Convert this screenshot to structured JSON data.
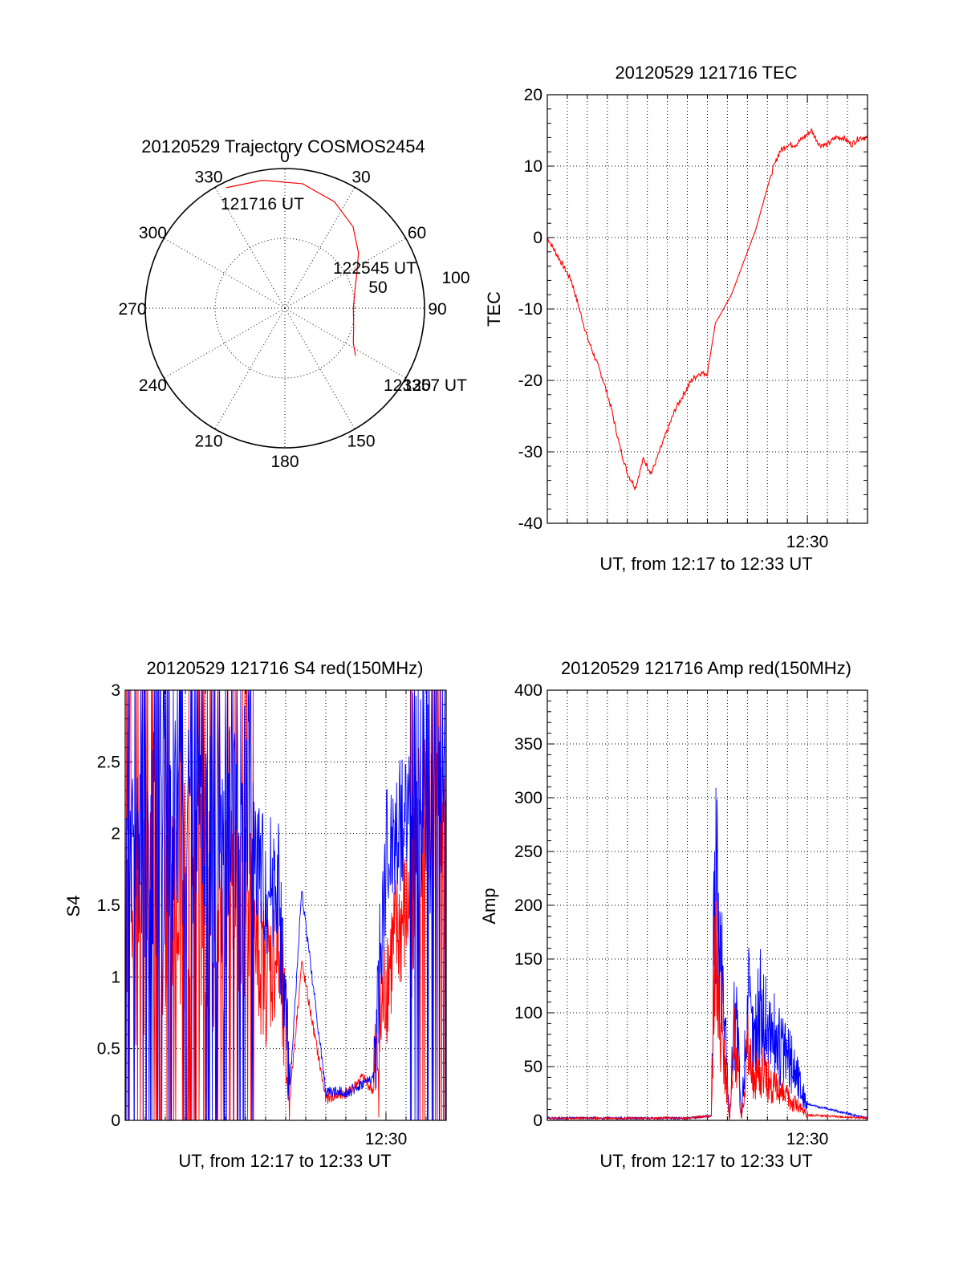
{
  "colors": {
    "red": "#ff0000",
    "blue": "#0000ff",
    "axes": "#000000"
  },
  "polar": {
    "title": "20120529 Trajectory COSMOS2454",
    "angle_labels": [
      "0",
      "30",
      "60",
      "90",
      "120",
      "150",
      "180",
      "210",
      "240",
      "270",
      "300",
      "330"
    ],
    "radius_labels": [
      "50",
      "100"
    ],
    "start_label": "121716 UT",
    "mid_label": "122545 UT",
    "end_label": "123357 UT"
  },
  "charts": {
    "tec": {
      "title": "20120529 121716 TEC",
      "ylabel": "TEC",
      "xlabel": "UT, from 12:17 to 12:33 UT",
      "xtick_label": "12:30",
      "yticks": [
        "-40",
        "-30",
        "-20",
        "-10",
        "0",
        "10",
        "20"
      ]
    },
    "s4": {
      "title": "20120529 121716 S4 red(150MHz)",
      "ylabel": "S4",
      "xlabel": "UT, from 12:17 to 12:33 UT",
      "xtick_label": "12:30",
      "yticks": [
        "0",
        "0.5",
        "1",
        "1.5",
        "2",
        "2.5",
        "3"
      ]
    },
    "amp": {
      "title": "20120529 121716 Amp red(150MHz)",
      "ylabel": "Amp",
      "xlabel": "UT, from 12:17 to 12:33 UT",
      "xtick_label": "12:30",
      "yticks": [
        "0",
        "50",
        "100",
        "150",
        "200",
        "250",
        "300",
        "350",
        "400"
      ]
    }
  },
  "chart_data": [
    {
      "type": "scatter",
      "title": "20120529 Trajectory COSMOS2454",
      "projection": "polar",
      "r_range": [
        0,
        100
      ],
      "angle_ticks": [
        0,
        30,
        60,
        90,
        120,
        150,
        180,
        210,
        240,
        270,
        300,
        330
      ],
      "r_ticks": [
        50,
        100
      ],
      "series": [
        {
          "color": "#ff0000",
          "points_az_el": [
            [
              -26,
              96
            ],
            [
              -10,
              93
            ],
            [
              8,
              90
            ],
            [
              25,
              84
            ],
            [
              40,
              76
            ],
            [
              53,
              66
            ],
            [
              63,
              58
            ],
            [
              75,
              52
            ],
            [
              90,
              49
            ],
            [
              105,
              51
            ],
            [
              117,
              55
            ],
            [
              124,
              61
            ]
          ]
        }
      ],
      "annotations": [
        "121716 UT",
        "122545 UT",
        "123357 UT"
      ]
    },
    {
      "type": "line",
      "title": "20120529 121716 TEC",
      "xlabel": "UT, from 12:17 to 12:33 UT",
      "ylabel": "TEC",
      "xlim": [
        12.2833,
        12.55
      ],
      "ylim": [
        -40,
        20
      ],
      "series": [
        {
          "color": "#ff0000",
          "x_hours": [
            12.2833,
            12.29,
            12.2967,
            12.3033,
            12.31,
            12.3167,
            12.3233,
            12.33,
            12.3367,
            12.3433,
            12.35,
            12.3567,
            12.3633,
            12.37,
            12.3767,
            12.3833,
            12.39,
            12.3967,
            12.4033,
            12.41,
            12.4167,
            12.4233,
            12.43,
            12.4367,
            12.4433,
            12.45,
            12.4567,
            12.4633,
            12.47,
            12.4767,
            12.4833,
            12.49,
            12.4967,
            12.5033,
            12.51,
            12.5167,
            12.5233,
            12.53,
            12.5367,
            12.5433,
            12.55
          ],
          "y": [
            0,
            -2,
            -4,
            -6,
            -10,
            -14,
            -17,
            -20,
            -24,
            -29,
            -33,
            -35,
            -31,
            -33,
            -30,
            -27,
            -24,
            -22,
            -20,
            -19,
            -19,
            -12,
            -10,
            -8,
            -5,
            -2,
            1,
            5,
            9,
            12,
            13,
            13,
            14,
            15,
            13,
            13,
            14,
            14,
            13,
            14,
            14
          ]
        }
      ]
    },
    {
      "type": "line",
      "title": "20120529 121716 S4 red(150MHz)",
      "xlabel": "UT, from 12:17 to 12:33 UT",
      "ylabel": "S4",
      "xlim": [
        12.2833,
        12.55
      ],
      "ylim": [
        0,
        3
      ],
      "series": [
        {
          "color": "#ff0000",
          "x_hours": [
            12.2833,
            12.3,
            12.32,
            12.34,
            12.36,
            12.38,
            12.4,
            12.41,
            12.42,
            12.43,
            12.45,
            12.47,
            12.48,
            12.49,
            12.5,
            12.51,
            12.52,
            12.53,
            12.54,
            12.55
          ],
          "y": [
            1.2,
            1.4,
            1.5,
            1.6,
            1.3,
            1.5,
            1.0,
            1.2,
            0.15,
            1.1,
            0.15,
            0.2,
            0.3,
            0.2,
            1.0,
            1.3,
            1.5,
            2.0,
            2.5,
            1.5
          ]
        },
        {
          "color": "#0000ff",
          "x_hours": [
            12.2833,
            12.3,
            12.32,
            12.34,
            12.36,
            12.38,
            12.4,
            12.41,
            12.42,
            12.43,
            12.45,
            12.47,
            12.48,
            12.49,
            12.5,
            12.51,
            12.52,
            12.53,
            12.54,
            12.55
          ],
          "y": [
            1.8,
            1.9,
            2.0,
            2.1,
            1.8,
            2.2,
            1.6,
            1.7,
            0.2,
            1.6,
            0.2,
            0.2,
            0.25,
            0.3,
            1.8,
            2.0,
            2.2,
            2.3,
            2.0,
            1.9
          ]
        }
      ]
    },
    {
      "type": "line",
      "title": "20120529 121716 Amp red(150MHz)",
      "xlabel": "UT, from 12:17 to 12:33 UT",
      "ylabel": "Amp",
      "xlim": [
        12.2833,
        12.55
      ],
      "ylim": [
        0,
        400
      ],
      "series": [
        {
          "color": "#ff0000",
          "x_hours": [
            12.2833,
            12.35,
            12.4,
            12.42,
            12.423,
            12.426,
            12.43,
            12.435,
            12.44,
            12.445,
            12.45,
            12.455,
            12.46,
            12.47,
            12.48,
            12.49,
            12.5,
            12.55
          ],
          "y": [
            2,
            2,
            2,
            4,
            260,
            150,
            90,
            0,
            100,
            0,
            90,
            40,
            60,
            40,
            30,
            20,
            5,
            2
          ]
        },
        {
          "color": "#0000ff",
          "x_hours": [
            12.2833,
            12.35,
            12.4,
            12.42,
            12.423,
            12.426,
            12.43,
            12.435,
            12.44,
            12.445,
            12.45,
            12.455,
            12.46,
            12.47,
            12.48,
            12.49,
            12.5,
            12.55
          ],
          "y": [
            2,
            2,
            2,
            4,
            300,
            200,
            150,
            0,
            150,
            0,
            140,
            90,
            130,
            100,
            80,
            60,
            15,
            2
          ]
        }
      ]
    }
  ]
}
